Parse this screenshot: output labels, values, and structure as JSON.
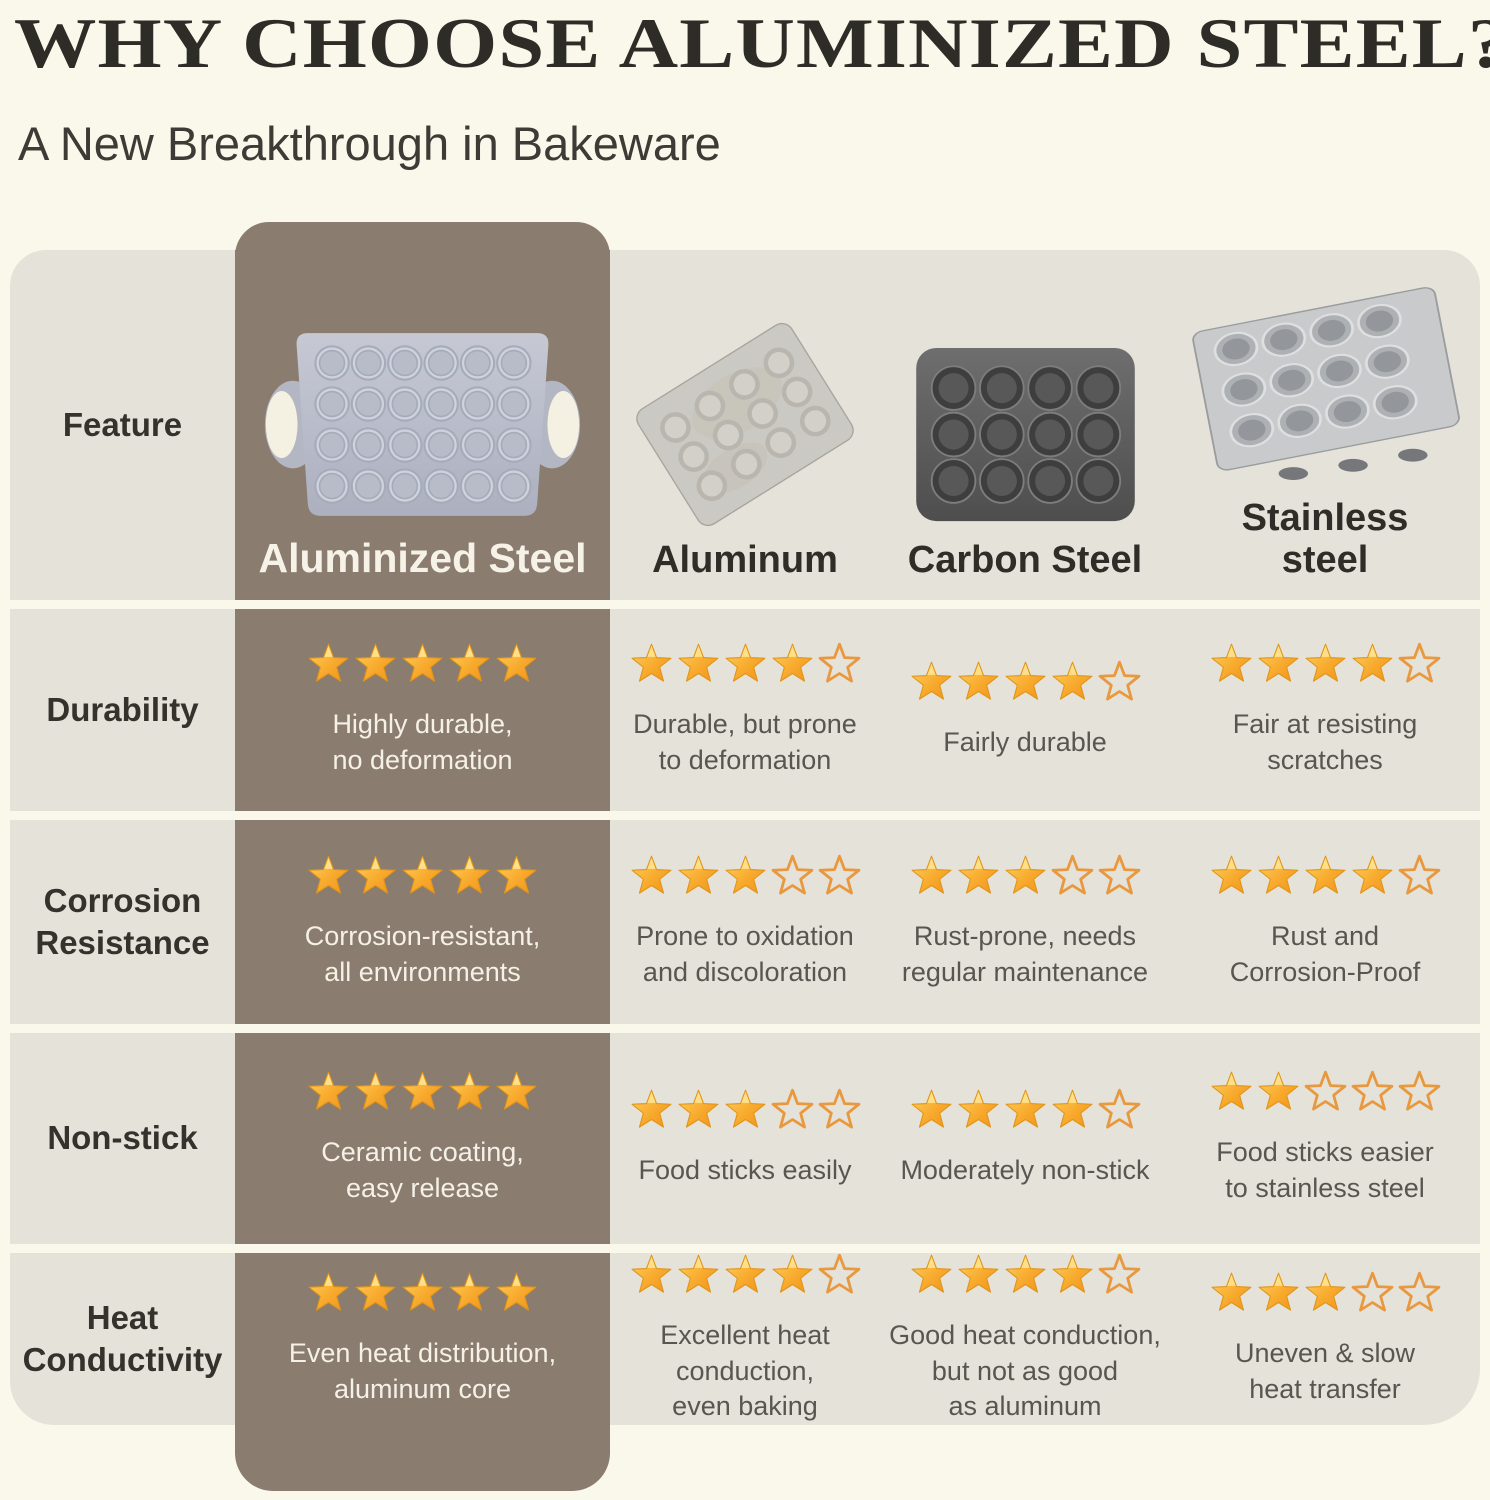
{
  "header": {
    "title": "WHY CHOOSE ALUMINIZED STEEL?",
    "subtitle": "A New Breakthrough in Bakeware"
  },
  "table": {
    "feature_col_label": "Feature",
    "columns": [
      {
        "label": "Aluminized Steel"
      },
      {
        "label": "Aluminum"
      },
      {
        "label": "Carbon Steel"
      },
      {
        "label": "Stainless\nsteel"
      }
    ],
    "rows": [
      {
        "feature": "Durability",
        "cells": [
          {
            "stars": 5,
            "text": "Highly durable,\nno deformation"
          },
          {
            "stars": 4,
            "text": "Durable, but prone\nto deformation"
          },
          {
            "stars": 4,
            "text": "Fairly durable"
          },
          {
            "stars": 4,
            "text": "Fair at resisting\nscratches"
          }
        ]
      },
      {
        "feature": "Corrosion Resistance",
        "cells": [
          {
            "stars": 5,
            "text": "Corrosion-resistant,\nall environments"
          },
          {
            "stars": 3,
            "text": "Prone to oxidation\nand discoloration"
          },
          {
            "stars": 3,
            "text": "Rust-prone, needs\nregular maintenance"
          },
          {
            "stars": 4,
            "text": "Rust and\nCorrosion-Proof"
          }
        ]
      },
      {
        "feature": "Non-stick",
        "cells": [
          {
            "stars": 5,
            "text": "Ceramic coating,\neasy release"
          },
          {
            "stars": 3,
            "text": "Food sticks easily"
          },
          {
            "stars": 4,
            "text": "Moderately non-stick"
          },
          {
            "stars": 2,
            "text": "Food sticks easier\nto stainless steel"
          }
        ]
      },
      {
        "feature": "Heat Conductivity",
        "cells": [
          {
            "stars": 5,
            "text": "Even heat distribution,\naluminum core"
          },
          {
            "stars": 4,
            "text": "Excellent heat\nconduction,\neven baking"
          },
          {
            "stars": 4,
            "text": "Good heat conduction,\nbut not as good\nas aluminum"
          },
          {
            "stars": 3,
            "text": "Uneven & slow\nheat transfer"
          }
        ]
      }
    ]
  },
  "colors": {
    "page_bg": "#FAF8EB",
    "row_bg": "#E5E2D9",
    "accent_brown": "#8A7C6E",
    "star_fill": "#F8AB2E",
    "star_outline": "#E8993F"
  },
  "chart_data": {
    "type": "table",
    "title": "WHY CHOOSE ALUMINIZED STEEL?",
    "subtitle": "A New Breakthrough in Bakeware",
    "columns": [
      "Feature",
      "Aluminized Steel",
      "Aluminum",
      "Carbon Steel",
      "Stainless steel"
    ],
    "rating_scale": [
      0,
      5
    ],
    "rows": [
      {
        "feature": "Durability",
        "ratings": {
          "Aluminized Steel": 5,
          "Aluminum": 4,
          "Carbon Steel": 4,
          "Stainless steel": 4
        },
        "notes": {
          "Aluminized Steel": "Highly durable, no deformation",
          "Aluminum": "Durable, but prone to deformation",
          "Carbon Steel": "Fairly durable",
          "Stainless steel": "Fair at resisting scratches"
        }
      },
      {
        "feature": "Corrosion Resistance",
        "ratings": {
          "Aluminized Steel": 5,
          "Aluminum": 3,
          "Carbon Steel": 3,
          "Stainless steel": 4
        },
        "notes": {
          "Aluminized Steel": "Corrosion-resistant, all environments",
          "Aluminum": "Prone to oxidation and discoloration",
          "Carbon Steel": "Rust-prone, needs regular maintenance",
          "Stainless steel": "Rust and Corrosion-Proof"
        }
      },
      {
        "feature": "Non-stick",
        "ratings": {
          "Aluminized Steel": 5,
          "Aluminum": 3,
          "Carbon Steel": 4,
          "Stainless steel": 2
        },
        "notes": {
          "Aluminized Steel": "Ceramic coating, easy release",
          "Aluminum": "Food sticks easily",
          "Carbon Steel": "Moderately non-stick",
          "Stainless steel": "Food sticks easier to stainless steel"
        }
      },
      {
        "feature": "Heat Conductivity",
        "ratings": {
          "Aluminized Steel": 5,
          "Aluminum": 4,
          "Carbon Steel": 4,
          "Stainless steel": 3
        },
        "notes": {
          "Aluminized Steel": "Even heat distribution, aluminum core",
          "Aluminum": "Excellent heat conduction, even baking",
          "Carbon Steel": "Good heat conduction, but not as good as aluminum",
          "Stainless steel": "Uneven & slow heat transfer"
        }
      }
    ]
  }
}
